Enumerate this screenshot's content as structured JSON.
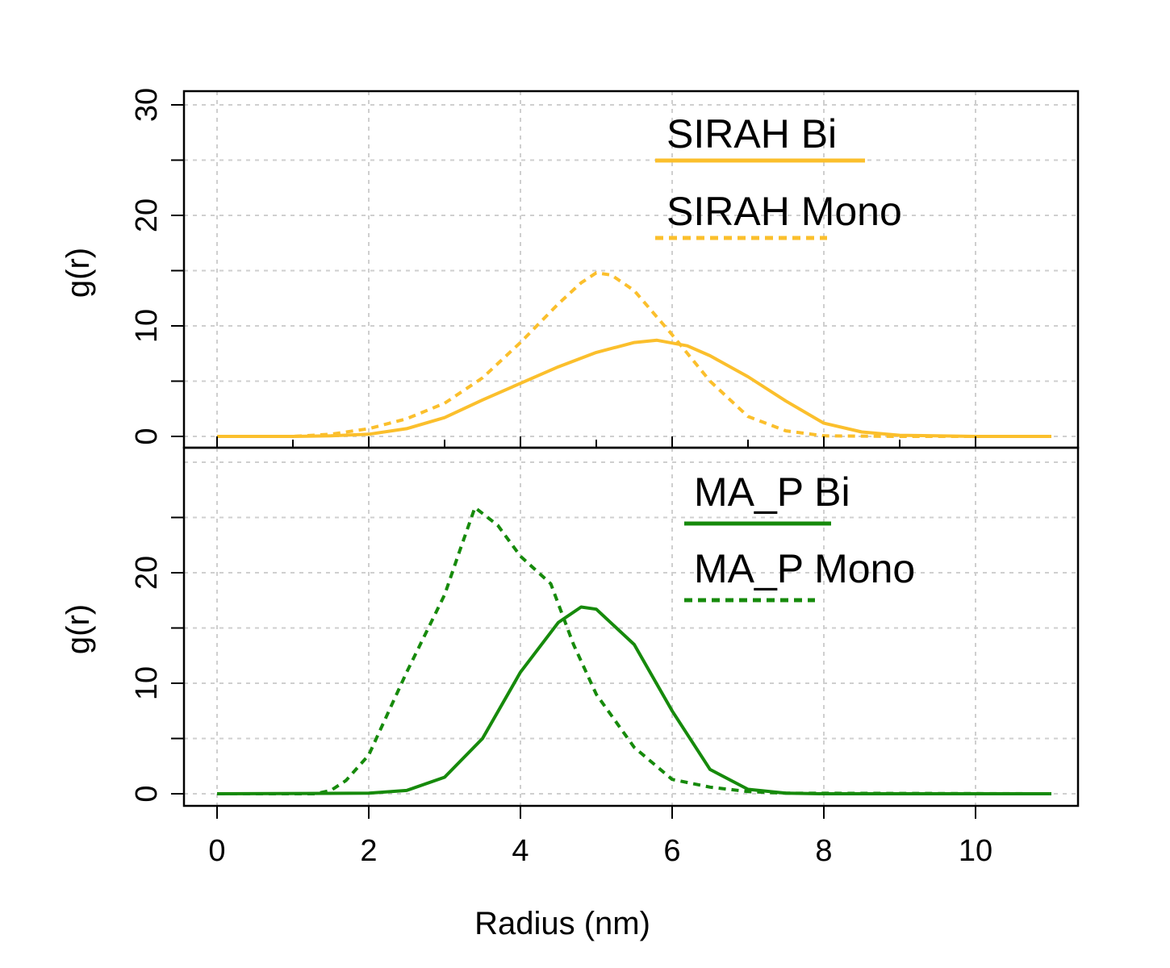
{
  "chart_data": [
    {
      "type": "line",
      "panel": "top",
      "xlabel": "",
      "ylabel": "g(r)",
      "xlim": [
        0,
        11
      ],
      "ylim": [
        0,
        30
      ],
      "xticks": [
        0,
        2,
        4,
        6,
        8,
        10
      ],
      "yticks": [
        0,
        10,
        20,
        30
      ],
      "grid": true,
      "legend_position": "top-right",
      "series": [
        {
          "name": "SIRAH Bi",
          "color": "#FBBF2C",
          "style": "solid",
          "x": [
            0,
            1,
            1.5,
            2,
            2.5,
            3,
            3.5,
            4,
            4.5,
            5,
            5.5,
            5.8,
            6.2,
            6.5,
            7,
            7.5,
            8,
            8.5,
            9,
            10,
            11
          ],
          "y": [
            0,
            0,
            0.05,
            0.2,
            0.7,
            1.7,
            3.3,
            4.8,
            6.3,
            7.6,
            8.5,
            8.7,
            8.2,
            7.3,
            5.4,
            3.2,
            1.2,
            0.4,
            0.1,
            0,
            0
          ]
        },
        {
          "name": "SIRAH Mono",
          "color": "#FBBF2C",
          "style": "dashed",
          "x": [
            0,
            1,
            1.5,
            2,
            2.5,
            3,
            3.5,
            4,
            4.5,
            4.8,
            5,
            5.2,
            5.5,
            6,
            6.5,
            7,
            7.5,
            8,
            9,
            11
          ],
          "y": [
            0,
            0,
            0.2,
            0.7,
            1.6,
            3.0,
            5.3,
            8.5,
            12.0,
            13.9,
            14.8,
            14.6,
            13.2,
            9.2,
            5.0,
            1.8,
            0.5,
            0.05,
            0,
            0
          ]
        }
      ]
    },
    {
      "type": "line",
      "panel": "bottom",
      "xlabel": "Radius (nm)",
      "ylabel": "g(r)",
      "xlim": [
        0,
        11
      ],
      "ylim": [
        0,
        30
      ],
      "xticks": [
        0,
        2,
        4,
        6,
        8,
        10
      ],
      "yticks": [
        0,
        10,
        20
      ],
      "grid": true,
      "legend_position": "top-right",
      "series": [
        {
          "name": "MA_P Bi",
          "color": "#168A0B",
          "style": "solid",
          "x": [
            0,
            2,
            2.5,
            3,
            3.5,
            4,
            4.5,
            4.8,
            5,
            5.5,
            6,
            6.5,
            7,
            7.5,
            8,
            11
          ],
          "y": [
            0,
            0.05,
            0.3,
            1.5,
            5.0,
            11.0,
            15.5,
            16.9,
            16.7,
            13.5,
            7.5,
            2.2,
            0.4,
            0.05,
            0,
            0
          ]
        },
        {
          "name": "MA_P Mono",
          "color": "#168A0B",
          "style": "dashed",
          "x": [
            0,
            1.3,
            1.5,
            1.7,
            2,
            2.5,
            3,
            3.2,
            3.4,
            3.7,
            4,
            4.4,
            4.7,
            5,
            5.5,
            6,
            6.5,
            7,
            7.5,
            11
          ],
          "y": [
            0,
            0,
            0.3,
            1.2,
            3.5,
            11.0,
            18.0,
            22.0,
            25.9,
            24.3,
            21.5,
            19.0,
            13.5,
            9.0,
            4.2,
            1.3,
            0.6,
            0.2,
            0.05,
            0
          ]
        }
      ]
    }
  ]
}
